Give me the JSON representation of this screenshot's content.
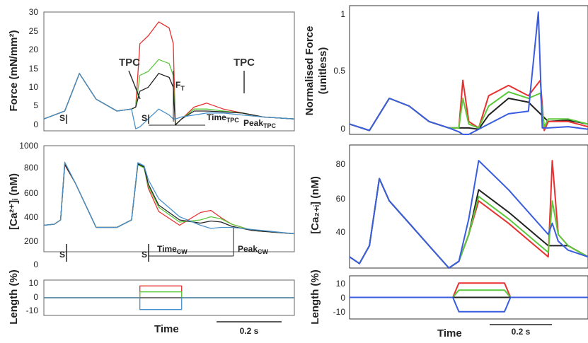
{
  "colors": {
    "red": "#e83030",
    "green": "#5cc83c",
    "black": "#222222",
    "blue": "#4a90c8",
    "blue_model": "#3a5ce0"
  },
  "labels": {
    "force_ylabel": "Force (mN/mm²)",
    "ca_ylabel": "[Ca²⁺]ᵢ (nM)",
    "length_ylabel": "Length (%)",
    "norm_ylabel_1": "Normalised Force",
    "norm_ylabel_2": "(unitless)",
    "ca_model_ylabel": "[Ca₂₊ᵢ] (nM)",
    "time_left": "Time",
    "time_right": "Time",
    "scale_left": "0.2 s",
    "scale_right": "0.2 s"
  },
  "annotations": {
    "tpc_left": "TPC",
    "tpc_right": "TPC",
    "ft": "F",
    "ft_sub": "T",
    "time_tpc": "Time",
    "time_tpc_sub": "TPC",
    "peak_tpc": "Peak",
    "peak_tpc_sub": "TPC",
    "time_cw": "Time",
    "time_cw_sub": "CW",
    "peak_cw": "Peak",
    "peak_cw_sub": "CW",
    "stim": "S"
  },
  "chart_data": [
    {
      "id": "force-experimental",
      "type": "line",
      "ylim": [
        0,
        30
      ],
      "yticks": [
        "0",
        "5",
        "10",
        "15",
        "20",
        "25",
        "30"
      ],
      "x_range_s": [
        0,
        1.2
      ],
      "series": [
        {
          "color": "red",
          "x": [
            0,
            0.1,
            0.17,
            0.25,
            0.35,
            0.42,
            0.44,
            0.46,
            0.5,
            0.55,
            0.6,
            0.62,
            0.63,
            0.66,
            0.72,
            0.78,
            0.86,
            0.95,
            1.05,
            1.2
          ],
          "y": [
            3,
            5,
            14.5,
            8,
            5,
            5.5,
            6,
            22,
            24,
            27.5,
            26,
            22,
            1.5,
            3,
            6,
            7,
            5.5,
            4.5,
            3.5,
            3
          ]
        },
        {
          "color": "green",
          "x": [
            0,
            0.1,
            0.17,
            0.25,
            0.35,
            0.42,
            0.44,
            0.46,
            0.5,
            0.55,
            0.6,
            0.62,
            0.63,
            0.66,
            0.72,
            0.78,
            0.86,
            0.95,
            1.05,
            1.2
          ],
          "y": [
            3,
            5,
            14.5,
            8,
            5,
            5.5,
            6,
            14,
            15,
            18,
            17,
            14,
            1.5,
            3,
            5.5,
            5.5,
            5,
            4.5,
            3.5,
            3
          ]
        },
        {
          "color": "black",
          "x": [
            0,
            0.1,
            0.17,
            0.25,
            0.35,
            0.42,
            0.44,
            0.46,
            0.5,
            0.55,
            0.6,
            0.62,
            0.63,
            0.66,
            0.72,
            0.78,
            0.86,
            0.95,
            1.05,
            1.2
          ],
          "y": [
            3,
            5,
            14.5,
            8,
            5,
            5.5,
            6,
            10,
            11,
            14.5,
            13.5,
            11,
            1.5,
            3,
            5,
            5,
            4.8,
            4.5,
            3.5,
            3
          ]
        },
        {
          "color": "blue",
          "x": [
            0,
            0.1,
            0.17,
            0.25,
            0.35,
            0.42,
            0.44,
            0.46,
            0.5,
            0.55,
            0.6,
            0.62,
            0.63,
            0.66,
            0.72,
            0.78,
            0.86,
            0.95,
            1.05,
            1.2
          ],
          "y": [
            3,
            5,
            14.5,
            8,
            5,
            5.5,
            0.5,
            1,
            3,
            5.5,
            4,
            3,
            3,
            3.5,
            4,
            4.5,
            4.5,
            4,
            3.5,
            3
          ]
        }
      ]
    },
    {
      "id": "calcium-experimental",
      "type": "line",
      "ylim": [
        0,
        1000
      ],
      "yticks": [
        "0",
        "200",
        "400",
        "600",
        "800",
        "1000"
      ],
      "x_range_s": [
        0,
        1.2
      ],
      "series": [
        {
          "color": "red",
          "x": [
            0,
            0.05,
            0.08,
            0.1,
            0.15,
            0.25,
            0.35,
            0.42,
            0.45,
            0.48,
            0.5,
            0.55,
            0.65,
            0.75,
            0.8,
            0.85,
            0.9,
            1.0,
            1.2
          ],
          "y": [
            250,
            260,
            300,
            820,
            650,
            230,
            230,
            300,
            820,
            800,
            600,
            380,
            250,
            370,
            390,
            320,
            260,
            200,
            170
          ]
        },
        {
          "color": "green",
          "x": [
            0,
            0.05,
            0.08,
            0.1,
            0.15,
            0.25,
            0.35,
            0.42,
            0.45,
            0.48,
            0.5,
            0.55,
            0.65,
            0.75,
            0.8,
            0.85,
            0.9,
            1.0,
            1.2
          ],
          "y": [
            250,
            260,
            300,
            830,
            650,
            230,
            230,
            300,
            820,
            790,
            620,
            420,
            280,
            300,
            330,
            310,
            260,
            200,
            170
          ]
        },
        {
          "color": "black",
          "x": [
            0,
            0.05,
            0.08,
            0.1,
            0.15,
            0.25,
            0.35,
            0.42,
            0.45,
            0.48,
            0.5,
            0.55,
            0.65,
            0.75,
            0.8,
            0.85,
            0.9,
            1.0,
            1.2
          ],
          "y": [
            250,
            260,
            300,
            825,
            650,
            230,
            230,
            300,
            830,
            800,
            640,
            440,
            300,
            270,
            290,
            280,
            240,
            200,
            170
          ]
        },
        {
          "color": "blue",
          "x": [
            0,
            0.05,
            0.08,
            0.1,
            0.15,
            0.25,
            0.35,
            0.42,
            0.45,
            0.48,
            0.5,
            0.55,
            0.65,
            0.75,
            0.8,
            0.85,
            0.9,
            1.0,
            1.2
          ],
          "y": [
            250,
            260,
            300,
            845,
            650,
            230,
            230,
            300,
            840,
            810,
            680,
            500,
            330,
            250,
            220,
            230,
            230,
            210,
            170
          ]
        }
      ]
    },
    {
      "id": "length-experimental",
      "type": "line",
      "ylim": [
        -15,
        15
      ],
      "yticks": [
        "10",
        "0",
        "-10"
      ],
      "x_range_s": [
        0,
        1.2
      ],
      "series": [
        {
          "color": "red",
          "x": [
            0,
            0.46,
            0.46,
            0.66,
            0.66,
            1.2
          ],
          "y": [
            0,
            0,
            10,
            10,
            0,
            0
          ]
        },
        {
          "color": "green",
          "x": [
            0,
            0.46,
            0.46,
            0.66,
            0.66,
            1.2
          ],
          "y": [
            0,
            0,
            5,
            5,
            0,
            0
          ]
        },
        {
          "color": "black",
          "x": [
            0,
            0.46,
            0.46,
            0.66,
            0.66,
            1.2
          ],
          "y": [
            0,
            0,
            0,
            0,
            0,
            0
          ]
        },
        {
          "color": "blue",
          "x": [
            0,
            0.46,
            0.46,
            0.66,
            0.66,
            1.2
          ],
          "y": [
            0,
            0,
            -10,
            -10,
            0,
            0
          ]
        }
      ]
    },
    {
      "id": "force-model",
      "type": "line",
      "ylim": [
        0,
        1
      ],
      "yticks": [
        "0",
        "0.5",
        "1"
      ],
      "x_range_s": [
        0,
        1.2
      ],
      "series": [
        {
          "color": "black",
          "x": [
            0,
            0.1,
            0.2,
            0.3,
            0.4,
            0.5,
            0.55,
            0.6,
            0.65,
            0.7,
            0.8,
            0.9,
            1.0,
            1.1,
            1.2
          ],
          "y": [
            0.08,
            0.03,
            0.28,
            0.22,
            0.1,
            0.05,
            0.05,
            0.05,
            0.04,
            0.15,
            0.28,
            0.25,
            0.1,
            0.11,
            0.08
          ]
        },
        {
          "color": "red",
          "x": [
            0,
            0.1,
            0.2,
            0.3,
            0.4,
            0.5,
            0.55,
            0.57,
            0.6,
            0.65,
            0.7,
            0.8,
            0.9,
            0.96,
            0.98,
            1.0,
            1.1,
            1.2
          ],
          "y": [
            0.08,
            0.03,
            0.28,
            0.22,
            0.1,
            0.05,
            0.05,
            0.42,
            0.1,
            0.05,
            0.3,
            0.38,
            0.3,
            0.42,
            0.03,
            0.1,
            0.1,
            0.06
          ]
        },
        {
          "color": "green",
          "x": [
            0,
            0.1,
            0.2,
            0.3,
            0.4,
            0.5,
            0.55,
            0.57,
            0.6,
            0.65,
            0.7,
            0.8,
            0.9,
            0.96,
            0.98,
            1.0,
            1.1,
            1.2
          ],
          "y": [
            0.08,
            0.03,
            0.28,
            0.22,
            0.1,
            0.05,
            0.05,
            0.28,
            0.08,
            0.05,
            0.22,
            0.33,
            0.28,
            0.32,
            0.06,
            0.12,
            0.12,
            0.08
          ]
        },
        {
          "color": "blue_model",
          "x": [
            0,
            0.1,
            0.2,
            0.3,
            0.4,
            0.5,
            0.55,
            0.57,
            0.6,
            0.65,
            0.7,
            0.8,
            0.9,
            0.95,
            0.97,
            1.0,
            1.1,
            1.2
          ],
          "y": [
            0.08,
            0.03,
            0.28,
            0.22,
            0.1,
            0.05,
            0.02,
            0.0,
            0.0,
            0.04,
            0.08,
            0.16,
            0.18,
            0.95,
            0.05,
            0.05,
            0.06,
            0.04
          ]
        }
      ]
    },
    {
      "id": "calcium-model",
      "type": "line",
      "ylim": [
        30,
        85
      ],
      "yticks": [
        "40",
        "60",
        "80"
      ],
      "x_range_s": [
        0,
        1.2
      ],
      "series": [
        {
          "color": "black",
          "x": [
            0,
            0.05,
            0.1,
            0.15,
            0.2,
            0.3,
            0.4,
            0.5,
            0.55,
            0.6,
            0.65,
            0.8,
            1.0,
            1.1,
            1.2
          ],
          "y": [
            35,
            32,
            40,
            70,
            60,
            50,
            40,
            30,
            33,
            45,
            65,
            55,
            40,
            40,
            35
          ]
        },
        {
          "color": "red",
          "x": [
            0,
            0.05,
            0.1,
            0.15,
            0.2,
            0.3,
            0.4,
            0.5,
            0.55,
            0.6,
            0.65,
            0.8,
            1.0,
            1.02,
            1.05,
            1.1,
            1.2
          ],
          "y": [
            35,
            32,
            40,
            70,
            60,
            50,
            40,
            30,
            33,
            45,
            60,
            50,
            35,
            78,
            45,
            40,
            35
          ]
        },
        {
          "color": "green",
          "x": [
            0,
            0.05,
            0.1,
            0.15,
            0.2,
            0.3,
            0.4,
            0.5,
            0.55,
            0.6,
            0.65,
            0.8,
            1.0,
            1.02,
            1.05,
            1.1,
            1.2
          ],
          "y": [
            35,
            32,
            40,
            70,
            60,
            50,
            40,
            30,
            33,
            45,
            62,
            52,
            37,
            60,
            45,
            40,
            35
          ]
        },
        {
          "color": "blue_model",
          "x": [
            0,
            0.05,
            0.1,
            0.15,
            0.2,
            0.3,
            0.4,
            0.5,
            0.55,
            0.6,
            0.65,
            0.8,
            1.0,
            1.02,
            1.05,
            1.1,
            1.2
          ],
          "y": [
            35,
            32,
            40,
            70,
            60,
            50,
            40,
            30,
            33,
            52,
            78,
            65,
            45,
            50,
            42,
            38,
            35
          ]
        }
      ]
    },
    {
      "id": "length-model",
      "type": "line",
      "ylim": [
        -15,
        15
      ],
      "yticks": [
        "10",
        "0",
        "-10"
      ],
      "x_range_s": [
        0,
        1.2
      ],
      "series": [
        {
          "color": "red",
          "x": [
            0,
            0.52,
            0.55,
            0.78,
            0.81,
            1.2
          ],
          "y": [
            0,
            0,
            10,
            10,
            0,
            0
          ]
        },
        {
          "color": "green",
          "x": [
            0,
            0.52,
            0.55,
            0.78,
            0.81,
            1.2
          ],
          "y": [
            0,
            0,
            5,
            5,
            0,
            0
          ]
        },
        {
          "color": "black",
          "x": [
            0,
            1.2
          ],
          "y": [
            0,
            0
          ]
        },
        {
          "color": "blue_model",
          "x": [
            0,
            0.52,
            0.55,
            0.78,
            0.81,
            1.2
          ],
          "y": [
            0,
            0,
            -10,
            -10,
            0,
            0
          ]
        }
      ]
    }
  ]
}
